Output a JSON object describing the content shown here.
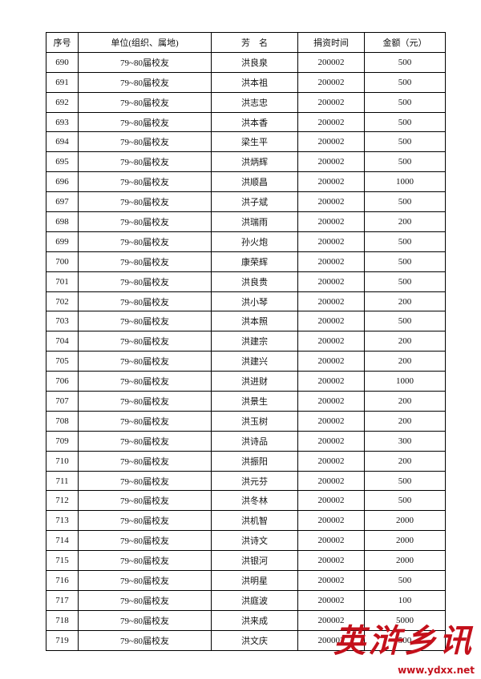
{
  "table": {
    "header": [
      "序号",
      "单位(组织、属地)",
      "芳　名",
      "捐资时间",
      "金额（元）"
    ],
    "rows": [
      [
        "690",
        "79~80届校友",
        "洪良泉",
        "200002",
        "500"
      ],
      [
        "691",
        "79~80届校友",
        "洪本祖",
        "200002",
        "500"
      ],
      [
        "692",
        "79~80届校友",
        "洪志忠",
        "200002",
        "500"
      ],
      [
        "693",
        "79~80届校友",
        "洪本香",
        "200002",
        "500"
      ],
      [
        "694",
        "79~80届校友",
        "梁生平",
        "200002",
        "500"
      ],
      [
        "695",
        "79~80届校友",
        "洪炳辉",
        "200002",
        "500"
      ],
      [
        "696",
        "79~80届校友",
        "洪顺昌",
        "200002",
        "1000"
      ],
      [
        "697",
        "79~80届校友",
        "洪子斌",
        "200002",
        "500"
      ],
      [
        "698",
        "79~80届校友",
        "洪瑞雨",
        "200002",
        "200"
      ],
      [
        "699",
        "79~80届校友",
        "孙火炮",
        "200002",
        "500"
      ],
      [
        "700",
        "79~80届校友",
        "康荣辉",
        "200002",
        "500"
      ],
      [
        "701",
        "79~80届校友",
        "洪良贵",
        "200002",
        "500"
      ],
      [
        "702",
        "79~80届校友",
        "洪小琴",
        "200002",
        "200"
      ],
      [
        "703",
        "79~80届校友",
        "洪本照",
        "200002",
        "500"
      ],
      [
        "704",
        "79~80届校友",
        "洪建宗",
        "200002",
        "200"
      ],
      [
        "705",
        "79~80届校友",
        "洪建兴",
        "200002",
        "200"
      ],
      [
        "706",
        "79~80届校友",
        "洪进财",
        "200002",
        "1000"
      ],
      [
        "707",
        "79~80届校友",
        "洪景生",
        "200002",
        "200"
      ],
      [
        "708",
        "79~80届校友",
        "洪玉树",
        "200002",
        "200"
      ],
      [
        "709",
        "79~80届校友",
        "洪诗品",
        "200002",
        "300"
      ],
      [
        "710",
        "79~80届校友",
        "洪振阳",
        "200002",
        "200"
      ],
      [
        "711",
        "79~80届校友",
        "洪元芬",
        "200002",
        "500"
      ],
      [
        "712",
        "79~80届校友",
        "洪冬林",
        "200002",
        "500"
      ],
      [
        "713",
        "79~80届校友",
        "洪机智",
        "200002",
        "2000"
      ],
      [
        "714",
        "79~80届校友",
        "洪诗文",
        "200002",
        "2000"
      ],
      [
        "715",
        "79~80届校友",
        "洪银河",
        "200002",
        "2000"
      ],
      [
        "716",
        "79~80届校友",
        "洪明星",
        "200002",
        "500"
      ],
      [
        "717",
        "79~80届校友",
        "洪庭波",
        "200002",
        "100"
      ],
      [
        "718",
        "79~80届校友",
        "洪来成",
        "200002",
        "5000"
      ],
      [
        "719",
        "79~80届校友",
        "洪文庆",
        "200002",
        "500"
      ]
    ]
  },
  "watermark": {
    "title": "英浒乡讯",
    "url": "www.ydxx.net"
  }
}
